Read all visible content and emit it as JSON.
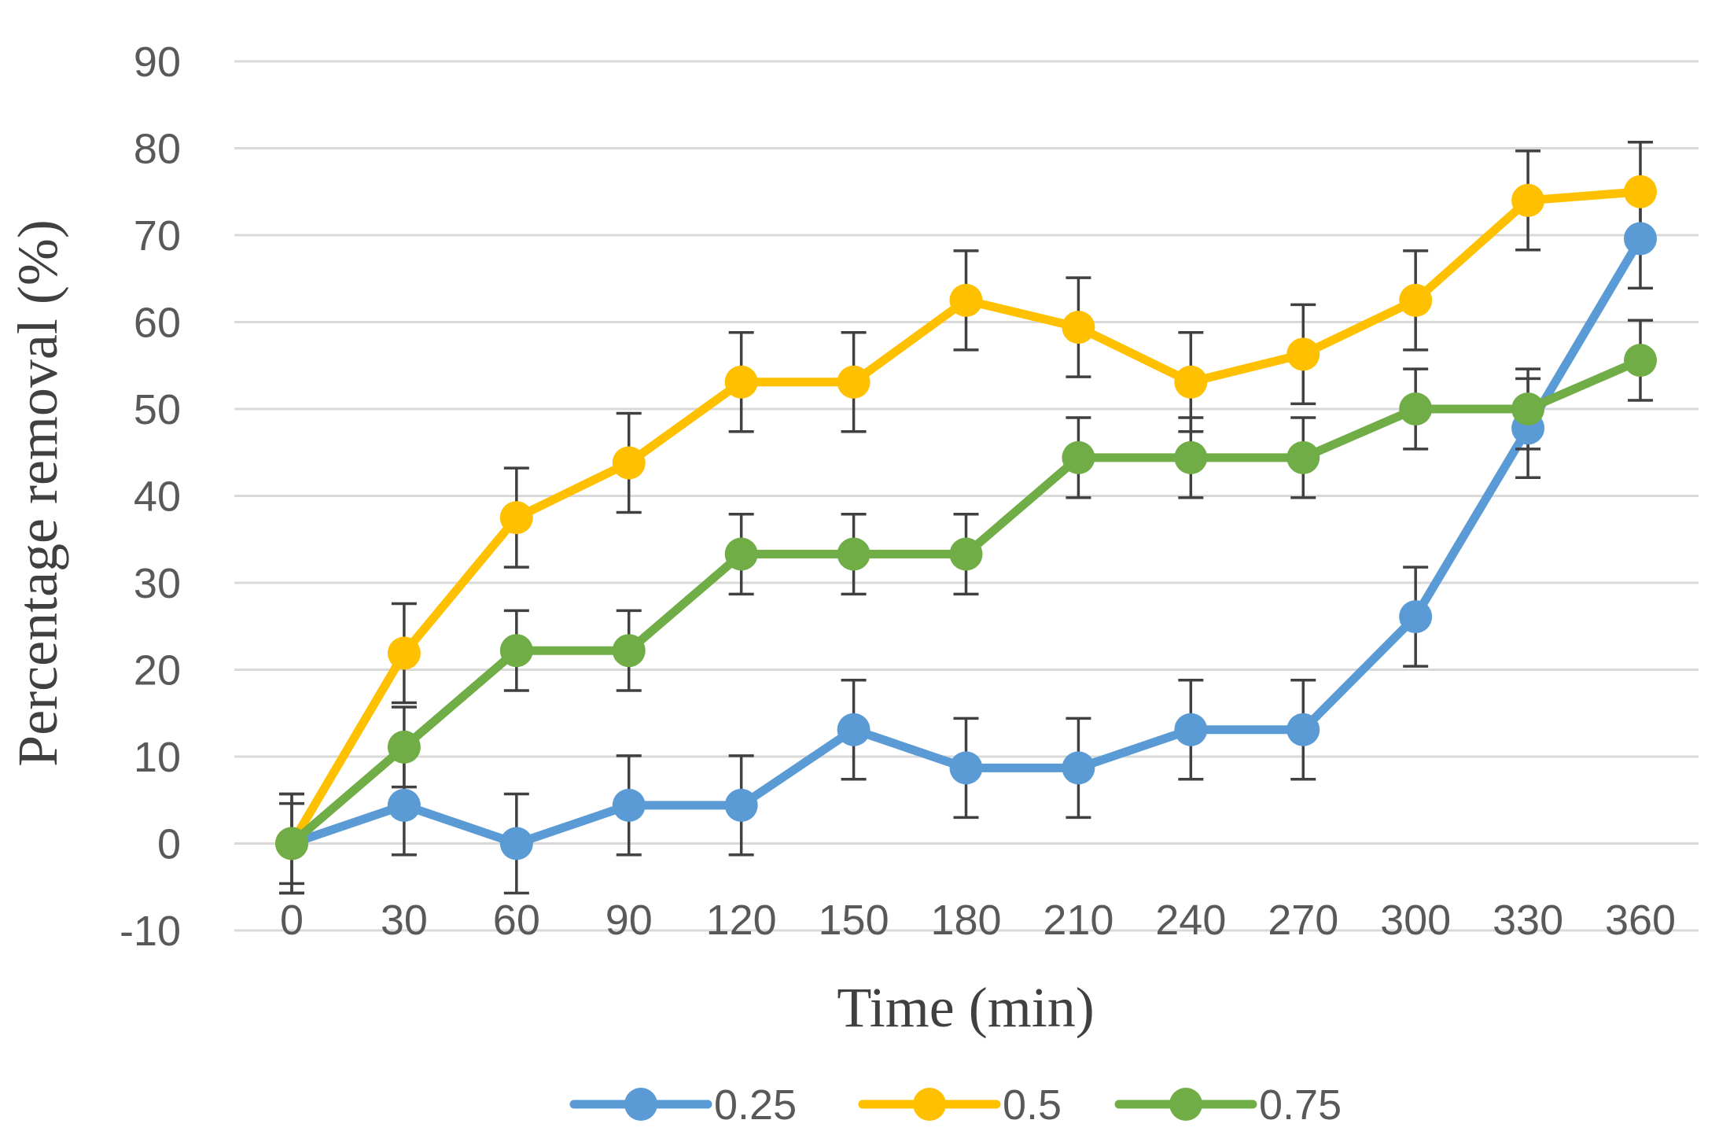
{
  "chart_data": {
    "type": "line",
    "title": "",
    "xlabel": "Time (min)",
    "ylabel": "Percentage removal (%)",
    "ylim": [
      -10,
      90
    ],
    "yticks": [
      -10,
      0,
      10,
      20,
      30,
      40,
      50,
      60,
      70,
      80,
      90
    ],
    "categories": [
      "0",
      "30",
      "60",
      "90",
      "120",
      "150",
      "180",
      "210",
      "240",
      "270",
      "300",
      "330",
      "360"
    ],
    "grid": true,
    "legend_position": "bottom",
    "series": [
      {
        "name": "0.25",
        "color": "#5b9bd5",
        "values": [
          0,
          4.4,
          0,
          4.4,
          4.4,
          13.1,
          8.7,
          8.7,
          13.1,
          13.1,
          26.1,
          47.8,
          69.6
        ],
        "errors": [
          5.7,
          5.7,
          5.7,
          5.7,
          5.7,
          5.7,
          5.7,
          5.7,
          5.7,
          5.7,
          5.7,
          5.7,
          5.7
        ]
      },
      {
        "name": "0.5",
        "color": "#ffc000",
        "values": [
          0,
          21.9,
          37.5,
          43.8,
          53.1,
          53.1,
          62.5,
          59.4,
          53.1,
          56.3,
          62.5,
          74.0,
          75.0
        ],
        "errors": [
          5.7,
          5.7,
          5.7,
          5.7,
          5.7,
          5.7,
          5.7,
          5.7,
          5.7,
          5.7,
          5.7,
          5.7,
          5.7
        ]
      },
      {
        "name": "0.75",
        "color": "#70ad47",
        "values": [
          0,
          11.1,
          22.2,
          22.2,
          33.3,
          33.3,
          33.3,
          44.4,
          44.4,
          44.4,
          50.0,
          50.0,
          55.6
        ],
        "errors": [
          4.6,
          4.6,
          4.6,
          4.6,
          4.6,
          4.6,
          4.6,
          4.6,
          4.6,
          4.6,
          4.6,
          4.6,
          4.6
        ]
      }
    ]
  }
}
